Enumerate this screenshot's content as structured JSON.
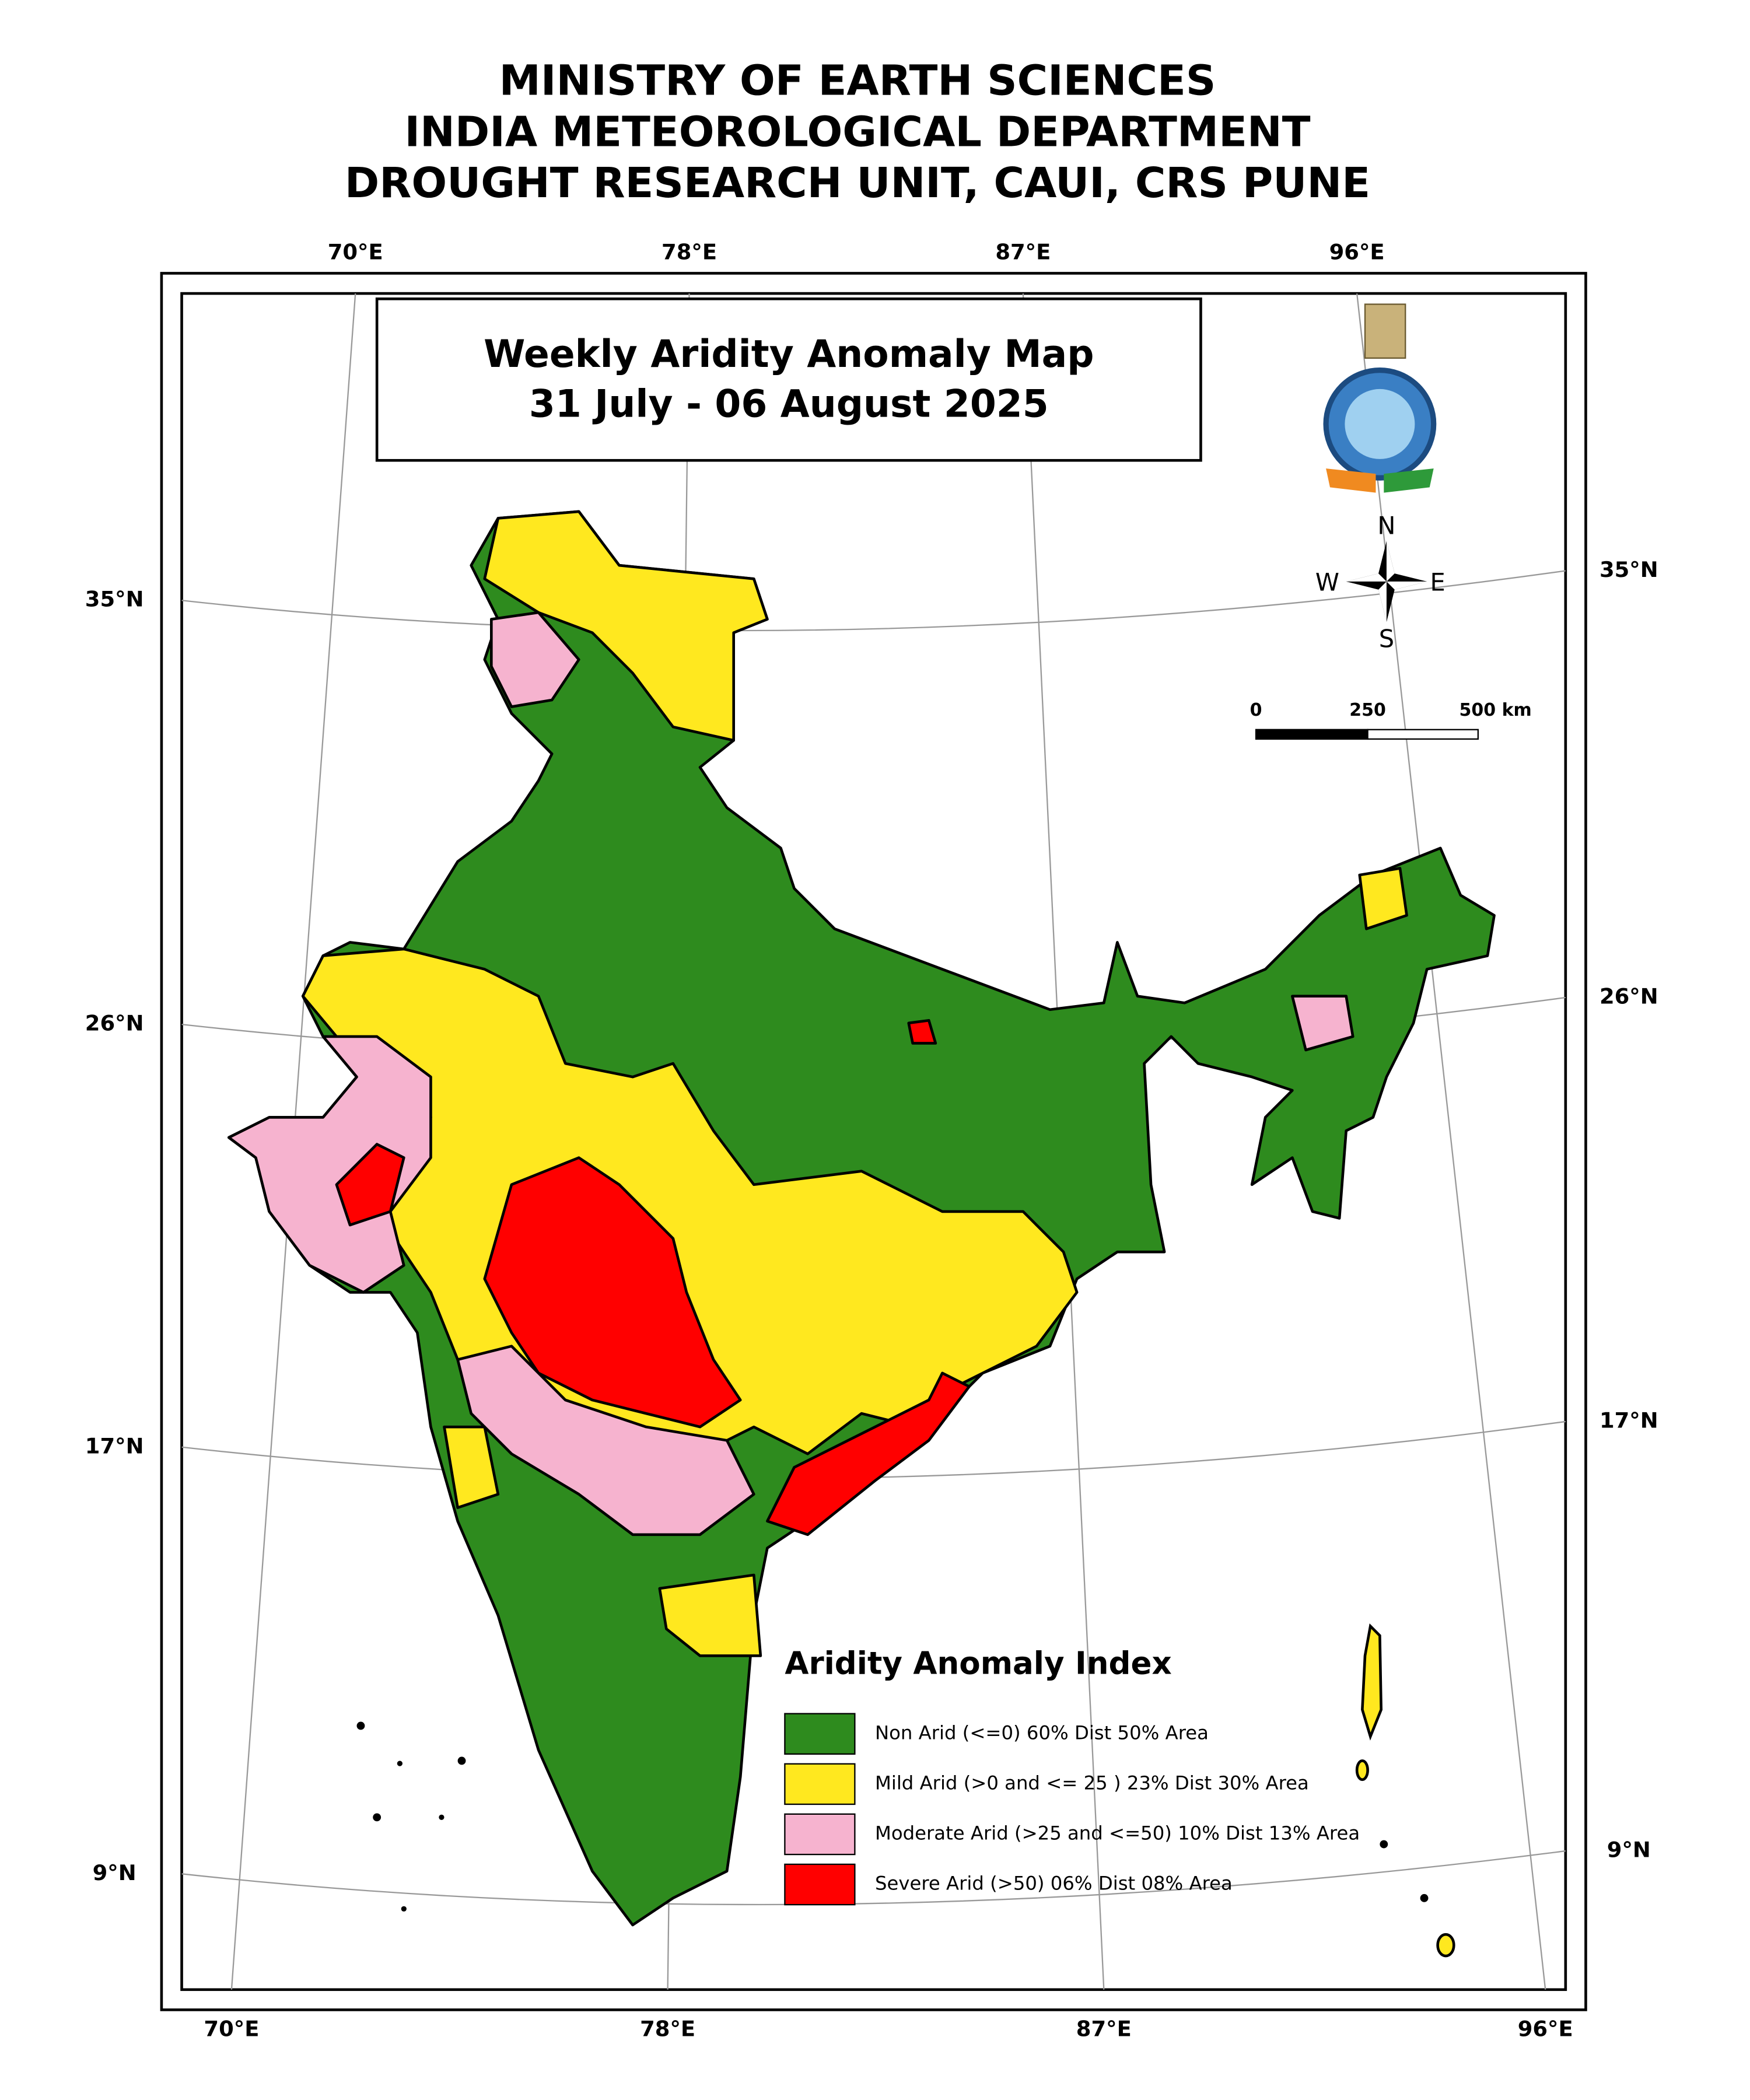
{
  "header": {
    "lines": [
      "MINISTRY OF EARTH SCIENCES",
      "INDIA METEOROLOGICAL DEPARTMENT",
      "DROUGHT RESEARCH UNIT, CAUI, CRS PUNE"
    ]
  },
  "map": {
    "title": "Weekly Aridity Anomaly Map",
    "date": "31 July - 06 August  2025",
    "top_labels": [
      "70°E",
      "78°E",
      "87°E",
      "96°E"
    ],
    "bottom_labels": [
      "70°E",
      "78°E",
      "87°E",
      "96°E"
    ],
    "left_labels": [
      "35°N",
      "26°N",
      "17°N",
      "9°N"
    ],
    "right_labels": [
      "35°N",
      "26°N",
      "17°N",
      "9°N"
    ],
    "compass": [
      "N",
      "W",
      "E",
      "S"
    ],
    "scale": [
      "0",
      "250",
      "500 km"
    ]
  },
  "legend": {
    "title": "Aridity Anomaly Index",
    "items": [
      {
        "label": "Non Arid (<=0) 60% Dist 50% Area",
        "color": "#2e8b1e"
      },
      {
        "label": "Mild Arid (>0 and <= 25 ) 23% Dist  30% Area",
        "color": "#ffe81f"
      },
      {
        "label": "Moderate Arid (>25 and <=50) 10% Dist  13% Area",
        "color": "#f6b3cf"
      },
      {
        "label": "Severe Arid (>50) 06% Dist  08% Area",
        "color": "#ff0000"
      }
    ]
  }
}
